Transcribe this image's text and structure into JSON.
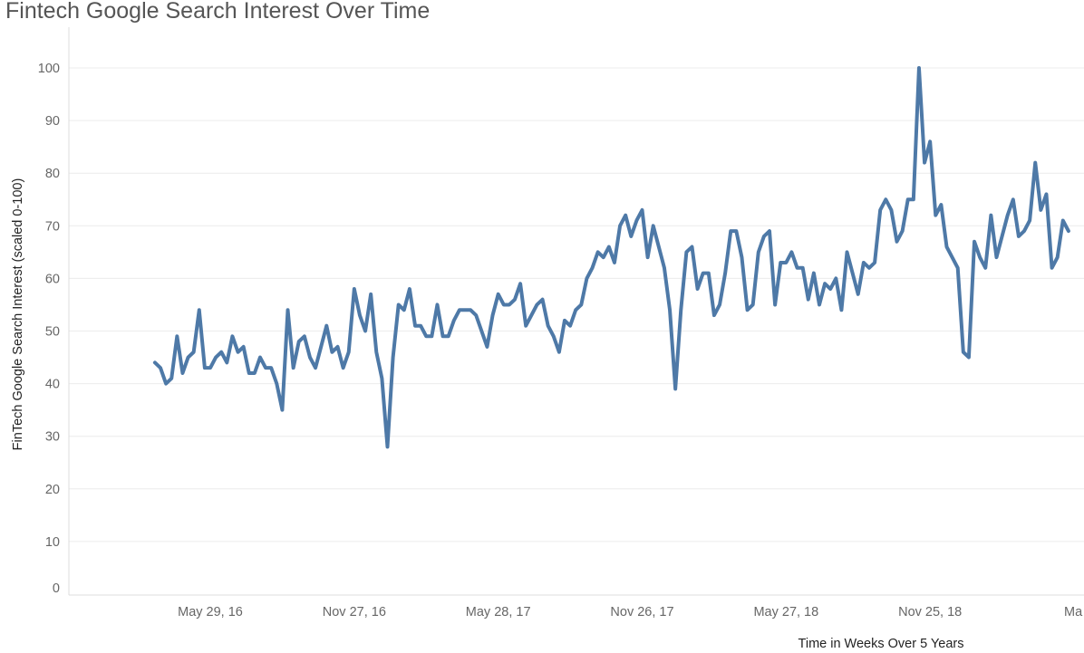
{
  "chart_data": {
    "type": "line",
    "title": "Fintech Google Search Interest Over Time",
    "xlabel": "Time in Weeks Over 5 Years",
    "ylabel": "FinTech Google Search Interest (scaled 0-100)",
    "ylim": [
      0,
      100
    ],
    "yticks": [
      0,
      10,
      20,
      30,
      40,
      50,
      60,
      70,
      80,
      90,
      100
    ],
    "xlim": [
      "2016-02-14",
      "2019-04-21"
    ],
    "xticks": [
      {
        "date": "2016-05-29",
        "label": "May 29, 16"
      },
      {
        "date": "2016-11-27",
        "label": "Nov 27, 16"
      },
      {
        "date": "2017-05-28",
        "label": "May 28, 17"
      },
      {
        "date": "2017-11-26",
        "label": "Nov 26, 17"
      },
      {
        "date": "2018-05-27",
        "label": "May 27, 18"
      },
      {
        "date": "2018-11-25",
        "label": "Nov 25, 18"
      },
      {
        "date": "2019-05-26",
        "label": "Ma"
      }
    ],
    "grid": true,
    "legend": "none",
    "series_color": "#4e79a7",
    "x_start": "2016-03-20",
    "x_step": "1 week",
    "values": [
      44,
      43,
      40,
      41,
      49,
      42,
      45,
      46,
      54,
      43,
      43,
      45,
      46,
      44,
      49,
      46,
      47,
      42,
      42,
      45,
      43,
      43,
      40,
      35,
      54,
      43,
      48,
      49,
      45,
      43,
      47,
      51,
      46,
      47,
      43,
      46,
      58,
      53,
      50,
      57,
      46,
      41,
      28,
      45,
      55,
      54,
      58,
      51,
      51,
      49,
      49,
      55,
      49,
      49,
      52,
      54,
      54,
      54,
      53,
      50,
      47,
      53,
      57,
      55,
      55,
      56,
      59,
      51,
      53,
      55,
      56,
      51,
      49,
      46,
      52,
      51,
      54,
      55,
      60,
      62,
      65,
      64,
      66,
      63,
      70,
      72,
      68,
      71,
      73,
      64,
      70,
      66,
      62,
      54,
      39,
      54,
      65,
      66,
      58,
      61,
      61,
      53,
      55,
      61,
      69,
      69,
      64,
      54,
      55,
      65,
      68,
      69,
      55,
      63,
      63,
      65,
      62,
      62,
      56,
      61,
      55,
      59,
      58,
      60,
      54,
      65,
      61,
      57,
      63,
      62,
      63,
      73,
      75,
      73,
      67,
      69,
      75,
      75,
      100,
      82,
      86,
      72,
      74,
      66,
      64,
      62,
      46,
      45,
      67,
      64,
      62,
      72,
      64,
      68,
      72,
      75,
      68,
      69,
      71,
      82,
      73,
      76,
      62,
      64,
      71,
      69
    ]
  }
}
